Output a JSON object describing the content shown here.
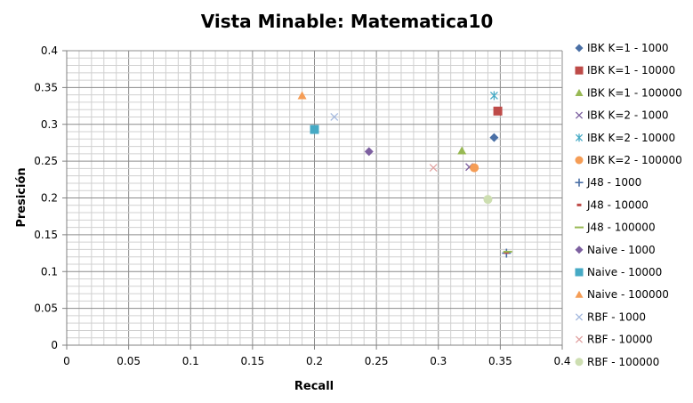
{
  "chart_data": {
    "type": "scatter",
    "title": "Vista Minable: Matematica10",
    "xlabel": "Recall",
    "ylabel": "Presición",
    "xlim": [
      0,
      0.4
    ],
    "ylim": [
      0,
      0.4
    ],
    "x_ticks": [
      "0",
      "0.05",
      "0.1",
      "0.15",
      "0.2",
      "0.25",
      "0.3",
      "0.35",
      "0.4"
    ],
    "y_ticks": [
      "0",
      "0.05",
      "0.1",
      "0.15",
      "0.2",
      "0.25",
      "0.3",
      "0.35",
      "0.4"
    ],
    "grid": true,
    "legend_position": "right",
    "series": [
      {
        "name": "IBK K=1 - 1000",
        "marker": "diamond",
        "color": "#4a6fa5",
        "x": 0.345,
        "y": 0.282
      },
      {
        "name": "IBK K=1 - 10000",
        "marker": "square",
        "color": "#be4b48",
        "x": 0.348,
        "y": 0.318
      },
      {
        "name": "IBK K=1 - 100000",
        "marker": "triangle",
        "color": "#98b954",
        "x": 0.319,
        "y": 0.264
      },
      {
        "name": "IBK K=2 - 1000",
        "marker": "x",
        "color": "#7d60a0",
        "x": 0.325,
        "y": 0.242
      },
      {
        "name": "IBK K=2 - 10000",
        "marker": "star",
        "color": "#46aac5",
        "x": 0.345,
        "y": 0.339
      },
      {
        "name": "IBK K=2 - 100000",
        "marker": "circle",
        "color": "#f59d56",
        "x": 0.329,
        "y": 0.241
      },
      {
        "name": "J48 - 1000",
        "marker": "plus",
        "color": "#4a6fa5",
        "x": 0.355,
        "y": 0.125
      },
      {
        "name": "J48 - 10000",
        "marker": "dash",
        "color": "#be4b48",
        "x": 0.355,
        "y": 0.126
      },
      {
        "name": "J48 - 100000",
        "marker": "line",
        "color": "#98b954",
        "x": 0.356,
        "y": 0.127
      },
      {
        "name": "Naive - 1000",
        "marker": "diamond",
        "color": "#7d60a0",
        "x": 0.244,
        "y": 0.263
      },
      {
        "name": "Naive - 10000",
        "marker": "square",
        "color": "#46aac5",
        "x": 0.2,
        "y": 0.293
      },
      {
        "name": "Naive - 100000",
        "marker": "triangle",
        "color": "#f59d56",
        "x": 0.19,
        "y": 0.339
      },
      {
        "name": "RBF - 1000",
        "marker": "x",
        "color": "#a5b9de",
        "x": 0.216,
        "y": 0.31
      },
      {
        "name": "RBF - 10000",
        "marker": "x",
        "color": "#e1a3a2",
        "x": 0.296,
        "y": 0.241
      },
      {
        "name": "RBF - 100000",
        "marker": "circle",
        "color": "#cddeb1",
        "x": 0.34,
        "y": 0.198
      }
    ]
  }
}
